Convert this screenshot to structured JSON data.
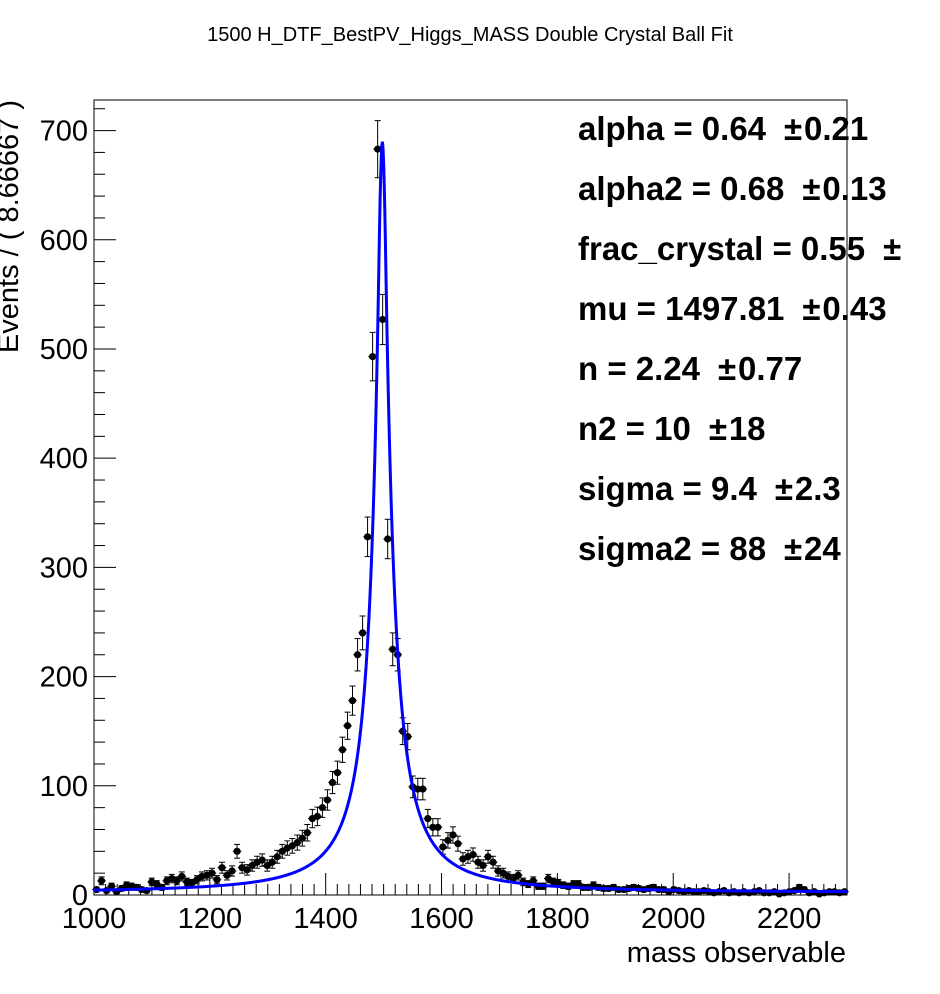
{
  "chart_data": {
    "type": "scatter",
    "title": "1500 H_DTF_BestPV_Higgs_MASS Double Crystal Ball Fit",
    "xlabel": "mass observable",
    "ylabel": "Events / ( 8.66667 )",
    "xlim": [
      1000,
      2300
    ],
    "ylim": [
      0,
      728
    ],
    "x_ticks": [
      "1000",
      "1200",
      "1400",
      "1600",
      "1800",
      "2000",
      "2200"
    ],
    "y_ticks": [
      "0",
      "100",
      "200",
      "300",
      "400",
      "500",
      "600",
      "700"
    ],
    "grid": false,
    "series": [
      {
        "kind": "data_points_with_errors",
        "color": "#000000",
        "x": [
          1004.3,
          1013,
          1021.7,
          1030.3,
          1039,
          1047.7,
          1056.3,
          1065,
          1073.7,
          1082.3,
          1091,
          1099.7,
          1108.3,
          1117,
          1125.7,
          1134.3,
          1143,
          1151.7,
          1160.3,
          1169,
          1177.7,
          1186.3,
          1195,
          1203.7,
          1212.3,
          1221,
          1229.7,
          1238.3,
          1247,
          1255.7,
          1264.3,
          1273,
          1281.7,
          1290.3,
          1299,
          1307.7,
          1316.3,
          1325,
          1333.7,
          1342.3,
          1351,
          1359.7,
          1368.3,
          1377,
          1385.7,
          1394.3,
          1403,
          1411.7,
          1420.3,
          1429,
          1437.7,
          1446.3,
          1455,
          1463.7,
          1472.3,
          1481,
          1489.7,
          1498.3,
          1507,
          1515.7,
          1524.3,
          1533,
          1541.7,
          1550.3,
          1559,
          1567.7,
          1576.3,
          1585,
          1593.7,
          1602.3,
          1611,
          1619.7,
          1628.3,
          1637,
          1645.7,
          1654.3,
          1663,
          1671.7,
          1680.3,
          1689,
          1697.7,
          1706.3,
          1715,
          1723.7,
          1732.3,
          1741,
          1749.7,
          1758.3,
          1767,
          1775.7,
          1784.3,
          1793,
          1801.7,
          1810.3,
          1819,
          1827.7,
          1836.3,
          1845,
          1853.7,
          1862.3,
          1871,
          1879.7,
          1888.3,
          1897,
          1905.7,
          1914.3,
          1923,
          1931.7,
          1940.3,
          1949,
          1957.7,
          1966.3,
          1975,
          1983.7,
          1992.3,
          2001,
          2009.7,
          2018.3,
          2027,
          2035.7,
          2044.3,
          2053,
          2061.7,
          2070.3,
          2079,
          2087.7,
          2096.3,
          2105,
          2113.7,
          2122.3,
          2131,
          2139.7,
          2148.3,
          2157,
          2165.7,
          2174.3,
          2183,
          2191.7,
          2200.3,
          2209,
          2217.7,
          2226.3,
          2235,
          2243.7,
          2252.3,
          2261,
          2269.7,
          2278.3,
          2287,
          2295.7
        ],
        "y": [
          5,
          13,
          4,
          8,
          3,
          6,
          9,
          8,
          7,
          5,
          4,
          12,
          10,
          7,
          13,
          15,
          13,
          17,
          12,
          11,
          14,
          17,
          18,
          20,
          14,
          25,
          18,
          22,
          40,
          25,
          23,
          27,
          30,
          32,
          27,
          30,
          35,
          40,
          43,
          45,
          48,
          52,
          57,
          70,
          72,
          80,
          87,
          103,
          112,
          133,
          155,
          178,
          220,
          240,
          328,
          493,
          683,
          527,
          326,
          225,
          220,
          150,
          145,
          99,
          97,
          97,
          70,
          62,
          62,
          44,
          50,
          55,
          47,
          33,
          35,
          37,
          30,
          27,
          35,
          30,
          22,
          20,
          17,
          15,
          18,
          12,
          10,
          13,
          8,
          8,
          15,
          12,
          11,
          9,
          8,
          10,
          10,
          7,
          7,
          9,
          7,
          6,
          6,
          7,
          5,
          5,
          6,
          7,
          6,
          5,
          6,
          7,
          5,
          5,
          3,
          5,
          4,
          3,
          4,
          3,
          3,
          4,
          3,
          2,
          3,
          4,
          2,
          3,
          2,
          3,
          2,
          3,
          4,
          2,
          2,
          3,
          1,
          2,
          3,
          4,
          7,
          5,
          2,
          3,
          1,
          2,
          3,
          3,
          2,
          3
        ]
      },
      {
        "kind": "fit_curve",
        "model": "double_crystal_ball",
        "color": "#0000ff",
        "peak_height": 690,
        "tail_plateau": 2
      }
    ],
    "annotations": [
      {
        "label": "alpha =  0.64",
        "pm": "±",
        "error": "0.21"
      },
      {
        "label": "alpha2 =  0.68",
        "pm": "±",
        "error": "0.13"
      },
      {
        "label": "frac_crystal =  0.55",
        "pm": "±",
        "error": ""
      },
      {
        "label": "mu =  1497.81",
        "pm": "±",
        "error": "0.43"
      },
      {
        "label": "n =  2.24",
        "pm": "±",
        "error": "0.77"
      },
      {
        "label": "n2 =  10",
        "pm": "±",
        "error": "18"
      },
      {
        "label": "sigma =  9.4",
        "pm": "±",
        "error": "2.3"
      },
      {
        "label": "sigma2 =  88",
        "pm": "±",
        "error": "24"
      }
    ],
    "fit_parameters": {
      "alpha": 0.64,
      "alpha2": 0.68,
      "frac_crystal": 0.55,
      "mu": 1497.81,
      "n": 2.24,
      "n2": 10,
      "sigma": 9.4,
      "sigma2": 88
    }
  }
}
